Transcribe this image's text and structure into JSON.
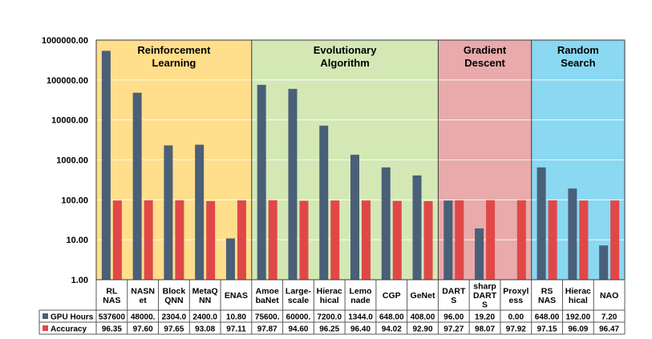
{
  "chart_data": {
    "type": "bar",
    "y_scale": "log",
    "ylim": [
      1,
      1000000
    ],
    "y_ticks": [
      "1.00",
      "10.00",
      "100.00",
      "1000.00",
      "10000.00",
      "100000.00",
      "1000000.00"
    ],
    "grid": true,
    "legend": "data-table-left",
    "groups": [
      {
        "name": "Reinforcement Learning",
        "lines": [
          "Reinforcement",
          "Learning"
        ],
        "color": "#ffde8c",
        "count": 5
      },
      {
        "name": "Evolutionary Algorithm",
        "lines": [
          "Evolutionary",
          "Algorithm"
        ],
        "color": "#d3e8b5",
        "count": 6
      },
      {
        "name": "Gradient Descent",
        "lines": [
          "Gradient",
          "Descent"
        ],
        "color": "#e8aaaa",
        "count": 3
      },
      {
        "name": "Random Search",
        "lines": [
          "Random",
          "Search"
        ],
        "color": "#8ad8f2",
        "count": 3
      }
    ],
    "categories": [
      [
        "RL",
        "NAS"
      ],
      [
        "NASN",
        "et"
      ],
      [
        "Block",
        "QNN"
      ],
      [
        "MetaQ",
        "NN"
      ],
      [
        "ENAS"
      ],
      [
        "Amoe",
        "baNet"
      ],
      [
        "Large-",
        "scale"
      ],
      [
        "Hierac",
        "hical"
      ],
      [
        "Lemo",
        "nade"
      ],
      [
        "CGP"
      ],
      [
        "GeNet"
      ],
      [
        "DART",
        "S"
      ],
      [
        "sharp",
        "DART",
        "S"
      ],
      [
        "Proxyl",
        "ess"
      ],
      [
        "RS",
        "NAS"
      ],
      [
        "Hierac",
        "hical"
      ],
      [
        "NAO"
      ]
    ],
    "series": [
      {
        "name": "GPU Hours",
        "color": "#4a5f78",
        "values": [
          537600,
          48000,
          2304,
          2400,
          10.8,
          75600,
          60000,
          7200,
          1344,
          648,
          408,
          96,
          19.2,
          0,
          648,
          192,
          7.2
        ],
        "labels": [
          "537600",
          "48000.",
          "2304.0",
          "2400.0",
          "10.80",
          "75600.",
          "60000.",
          "7200.0",
          "1344.0",
          "648.00",
          "408.00",
          "96.00",
          "19.20",
          "0.00",
          "648.00",
          "192.00",
          "7.20"
        ]
      },
      {
        "name": "Accuracy",
        "color": "#e04848",
        "values": [
          96.35,
          97.6,
          97.65,
          93.08,
          97.11,
          97.87,
          94.6,
          96.25,
          96.4,
          94.02,
          92.9,
          97.27,
          98.07,
          97.92,
          97.15,
          96.09,
          96.47
        ],
        "labels": [
          "96.35",
          "97.60",
          "97.65",
          "93.08",
          "97.11",
          "97.87",
          "94.60",
          "96.25",
          "96.40",
          "94.02",
          "92.90",
          "97.27",
          "98.07",
          "97.92",
          "97.15",
          "96.09",
          "96.47"
        ]
      }
    ]
  }
}
